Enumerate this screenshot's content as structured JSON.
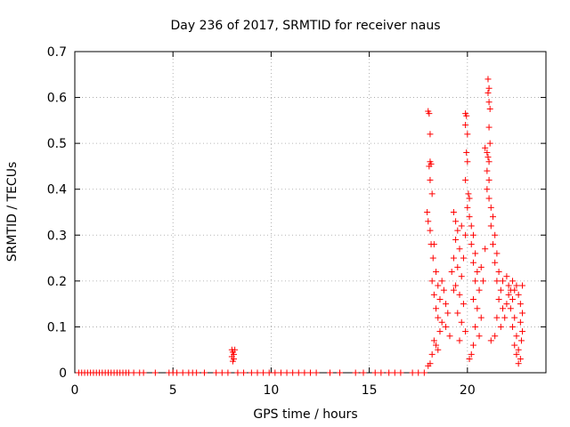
{
  "chart_data": {
    "type": "scatter",
    "title": "Day 236 of 2017, SRMTID for receiver naus",
    "xlabel": "GPS time / hours",
    "ylabel": "SRMTID / TECUs",
    "xlim": [
      0,
      24
    ],
    "ylim": [
      0,
      0.7
    ],
    "xticks": [
      0,
      5,
      10,
      15,
      20
    ],
    "yticks": [
      0,
      0.1,
      0.2,
      0.3,
      0.4,
      0.5,
      0.6,
      0.7
    ],
    "grid": true,
    "marker": "+",
    "color": "#ff0000",
    "series": [
      {
        "name": "SRMTID",
        "points": [
          [
            0.2,
            0
          ],
          [
            0.35,
            0
          ],
          [
            0.5,
            0
          ],
          [
            0.65,
            0
          ],
          [
            0.8,
            0
          ],
          [
            0.95,
            0
          ],
          [
            1.1,
            0
          ],
          [
            1.25,
            0
          ],
          [
            1.4,
            0
          ],
          [
            1.55,
            0
          ],
          [
            1.7,
            0
          ],
          [
            1.85,
            0
          ],
          [
            2.0,
            0
          ],
          [
            2.15,
            0
          ],
          [
            2.3,
            0
          ],
          [
            2.45,
            0
          ],
          [
            2.6,
            0
          ],
          [
            2.75,
            0
          ],
          [
            3.0,
            0
          ],
          [
            3.3,
            0
          ],
          [
            3.5,
            0
          ],
          [
            4.1,
            0
          ],
          [
            4.8,
            0
          ],
          [
            5.0,
            0
          ],
          [
            5.2,
            0
          ],
          [
            5.5,
            0
          ],
          [
            5.8,
            0
          ],
          [
            6.0,
            0
          ],
          [
            6.2,
            0
          ],
          [
            6.6,
            0
          ],
          [
            7.2,
            0
          ],
          [
            7.5,
            0
          ],
          [
            7.8,
            0
          ],
          [
            8.3,
            0
          ],
          [
            8.6,
            0
          ],
          [
            9.0,
            0
          ],
          [
            9.3,
            0
          ],
          [
            9.6,
            0
          ],
          [
            9.9,
            0
          ],
          [
            10.2,
            0
          ],
          [
            10.5,
            0
          ],
          [
            10.8,
            0
          ],
          [
            11.1,
            0
          ],
          [
            11.4,
            0
          ],
          [
            11.7,
            0
          ],
          [
            12.0,
            0
          ],
          [
            12.3,
            0
          ],
          [
            13.0,
            0
          ],
          [
            13.5,
            0
          ],
          [
            14.3,
            0
          ],
          [
            14.7,
            0
          ],
          [
            15.3,
            0
          ],
          [
            15.6,
            0
          ],
          [
            16.0,
            0
          ],
          [
            16.3,
            0
          ],
          [
            16.6,
            0
          ],
          [
            17.2,
            0
          ],
          [
            17.5,
            0
          ],
          [
            17.8,
            0
          ],
          [
            8.0,
            0.05
          ],
          [
            8.05,
            0.045
          ],
          [
            8.1,
            0.04
          ],
          [
            8.0,
            0.035
          ],
          [
            8.1,
            0.03
          ],
          [
            8.05,
            0.025
          ],
          [
            8.15,
            0.05
          ],
          [
            18.0,
            0.57
          ],
          [
            18.05,
            0.565
          ],
          [
            18.1,
            0.52
          ],
          [
            18.1,
            0.46
          ],
          [
            18.15,
            0.455
          ],
          [
            18.05,
            0.45
          ],
          [
            18.1,
            0.42
          ],
          [
            18.2,
            0.39
          ],
          [
            17.95,
            0.35
          ],
          [
            18.0,
            0.33
          ],
          [
            18.1,
            0.31
          ],
          [
            18.15,
            0.28
          ],
          [
            18.3,
            0.28
          ],
          [
            18.25,
            0.25
          ],
          [
            18.4,
            0.22
          ],
          [
            18.2,
            0.2
          ],
          [
            18.5,
            0.19
          ],
          [
            18.3,
            0.17
          ],
          [
            18.6,
            0.16
          ],
          [
            18.4,
            0.14
          ],
          [
            18.5,
            0.12
          ],
          [
            18.7,
            0.11
          ],
          [
            18.6,
            0.09
          ],
          [
            18.3,
            0.07
          ],
          [
            18.4,
            0.06
          ],
          [
            18.5,
            0.05
          ],
          [
            18.2,
            0.04
          ],
          [
            18.1,
            0.02
          ],
          [
            18.0,
            0.015
          ],
          [
            18.8,
            0.18
          ],
          [
            18.9,
            0.15
          ],
          [
            19.0,
            0.13
          ],
          [
            18.9,
            0.1
          ],
          [
            19.1,
            0.08
          ],
          [
            18.7,
            0.2
          ],
          [
            19.3,
            0.35
          ],
          [
            19.4,
            0.33
          ],
          [
            19.5,
            0.31
          ],
          [
            19.4,
            0.29
          ],
          [
            19.6,
            0.27
          ],
          [
            19.3,
            0.25
          ],
          [
            19.5,
            0.23
          ],
          [
            19.7,
            0.21
          ],
          [
            19.4,
            0.19
          ],
          [
            19.6,
            0.17
          ],
          [
            19.8,
            0.15
          ],
          [
            19.5,
            0.13
          ],
          [
            19.7,
            0.11
          ],
          [
            19.9,
            0.09
          ],
          [
            19.6,
            0.07
          ],
          [
            19.2,
            0.22
          ],
          [
            19.3,
            0.18
          ],
          [
            19.8,
            0.25
          ],
          [
            19.9,
            0.3
          ],
          [
            19.7,
            0.32
          ],
          [
            19.9,
            0.565
          ],
          [
            19.95,
            0.56
          ],
          [
            19.9,
            0.54
          ],
          [
            20.0,
            0.52
          ],
          [
            19.95,
            0.48
          ],
          [
            20.0,
            0.46
          ],
          [
            19.9,
            0.42
          ],
          [
            20.05,
            0.39
          ],
          [
            20.1,
            0.38
          ],
          [
            20.0,
            0.36
          ],
          [
            20.1,
            0.34
          ],
          [
            20.2,
            0.32
          ],
          [
            20.3,
            0.3
          ],
          [
            20.2,
            0.28
          ],
          [
            20.4,
            0.26
          ],
          [
            20.3,
            0.24
          ],
          [
            20.5,
            0.22
          ],
          [
            20.4,
            0.2
          ],
          [
            20.6,
            0.18
          ],
          [
            20.3,
            0.16
          ],
          [
            20.5,
            0.14
          ],
          [
            20.7,
            0.12
          ],
          [
            20.4,
            0.1
          ],
          [
            20.6,
            0.08
          ],
          [
            20.3,
            0.06
          ],
          [
            20.2,
            0.04
          ],
          [
            20.1,
            0.03
          ],
          [
            20.8,
            0.2
          ],
          [
            20.7,
            0.23
          ],
          [
            20.9,
            0.27
          ],
          [
            20.9,
            0.49
          ],
          [
            21.0,
            0.48
          ],
          [
            21.05,
            0.47
          ],
          [
            21.1,
            0.46
          ],
          [
            21.0,
            0.44
          ],
          [
            21.1,
            0.42
          ],
          [
            21.0,
            0.4
          ],
          [
            21.1,
            0.38
          ],
          [
            21.05,
            0.64
          ],
          [
            21.1,
            0.62
          ],
          [
            21.05,
            0.61
          ],
          [
            21.1,
            0.59
          ],
          [
            21.15,
            0.575
          ],
          [
            21.1,
            0.535
          ],
          [
            21.15,
            0.5
          ],
          [
            21.2,
            0.36
          ],
          [
            21.3,
            0.34
          ],
          [
            21.2,
            0.32
          ],
          [
            21.4,
            0.3
          ],
          [
            21.3,
            0.28
          ],
          [
            21.5,
            0.26
          ],
          [
            21.4,
            0.24
          ],
          [
            21.6,
            0.22
          ],
          [
            21.5,
            0.2
          ],
          [
            21.7,
            0.18
          ],
          [
            21.6,
            0.16
          ],
          [
            21.8,
            0.14
          ],
          [
            21.5,
            0.12
          ],
          [
            21.7,
            0.1
          ],
          [
            21.4,
            0.08
          ],
          [
            21.2,
            0.07
          ],
          [
            21.9,
            0.12
          ],
          [
            22.0,
            0.15
          ],
          [
            21.8,
            0.2
          ],
          [
            22.1,
            0.17
          ],
          [
            22.0,
            0.21
          ],
          [
            22.1,
            0.19
          ],
          [
            22.2,
            0.18
          ],
          [
            22.3,
            0.16
          ],
          [
            22.2,
            0.14
          ],
          [
            22.4,
            0.12
          ],
          [
            22.3,
            0.1
          ],
          [
            22.5,
            0.08
          ],
          [
            22.4,
            0.06
          ],
          [
            22.6,
            0.05
          ],
          [
            22.5,
            0.04
          ],
          [
            22.7,
            0.03
          ],
          [
            22.6,
            0.02
          ],
          [
            22.5,
            0.19
          ],
          [
            22.6,
            0.17
          ],
          [
            22.7,
            0.15
          ],
          [
            22.8,
            0.13
          ],
          [
            22.7,
            0.11
          ],
          [
            22.8,
            0.09
          ],
          [
            22.75,
            0.07
          ],
          [
            22.8,
            0.19
          ],
          [
            22.3,
            0.2
          ],
          [
            22.4,
            0.18
          ]
        ]
      }
    ]
  }
}
